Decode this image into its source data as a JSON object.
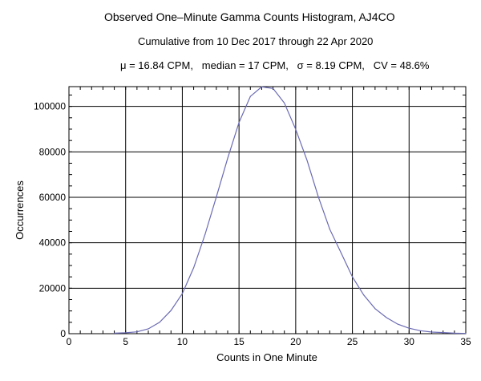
{
  "chart_data": {
    "type": "line",
    "title": "Observed One–Minute Gamma Counts Histogram, AJ4CO",
    "subtitle": "Cumulative from 10 Dec 2017 through 22 Apr 2020",
    "stats": "μ = 16.84 CPM,   median = 17 CPM,   σ = 8.19 CPM,   CV = 48.6%",
    "xlabel": "Counts in One Minute",
    "ylabel": "Occurrences",
    "xlim": [
      0,
      35
    ],
    "ylim": [
      0,
      108700
    ],
    "grid": true,
    "line_color": "#6a6ab4",
    "x_ticks": [
      "0",
      "5",
      "10",
      "15",
      "20",
      "25",
      "30",
      "35"
    ],
    "y_ticks": [
      "0",
      "20000",
      "40000",
      "60000",
      "80000",
      "100000"
    ],
    "x": [
      4,
      5,
      6,
      7,
      8,
      9,
      10,
      11,
      12,
      13,
      14,
      15,
      16,
      17,
      18,
      19,
      20,
      21,
      22,
      23,
      24,
      25,
      26,
      27,
      28,
      29,
      30,
      31,
      32,
      33,
      34,
      35
    ],
    "values": [
      200,
      400,
      800,
      2100,
      5000,
      10200,
      17600,
      29000,
      43600,
      60200,
      77200,
      92900,
      104400,
      108600,
      107900,
      101500,
      89900,
      76300,
      60200,
      46000,
      35600,
      25000,
      17000,
      11000,
      7100,
      4200,
      2400,
      1300,
      700,
      500,
      200,
      100
    ]
  }
}
